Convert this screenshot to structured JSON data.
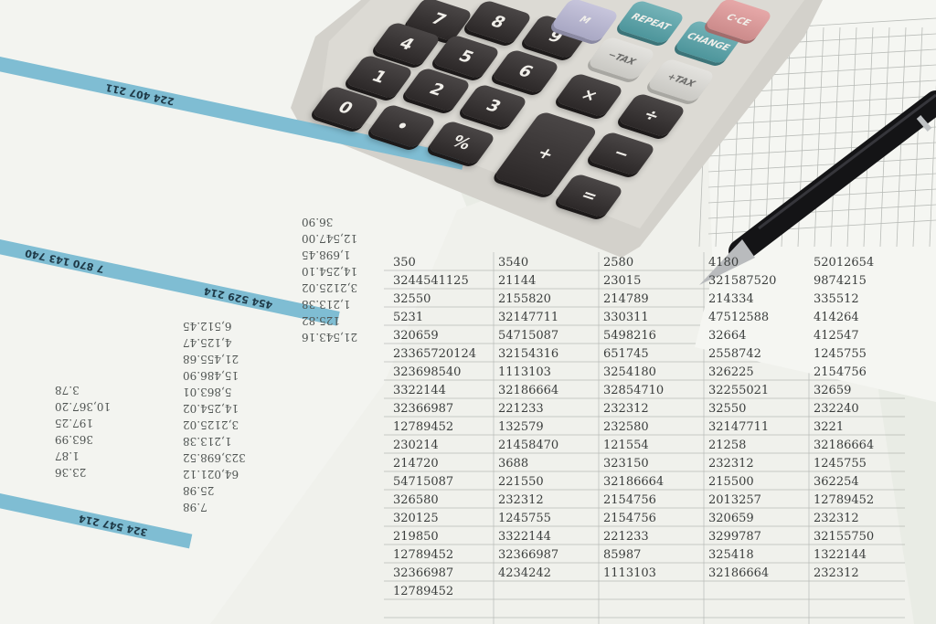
{
  "scene": {
    "description_colors": {
      "background": "#e9ece5",
      "band": "#7fbdd3",
      "calculator_body": "#d3d1cb",
      "key_dark": "#2c2828",
      "pen": "#141416"
    },
    "left_document": {
      "band_labels": [
        "224 407 211",
        "7 870 143 740",
        "454 529 214",
        "324 547 214"
      ],
      "values": [
        "36.90",
        "12,547.00",
        "1,698.45",
        "14,254.10",
        "3,2125.02",
        "1,213.38",
        "125.82",
        "21,543.16",
        "6,512.45",
        "4,125.47",
        "21,455.68",
        "15,486.90",
        "5,863.01",
        "14,254.02",
        "3,2125.02",
        "1,213.38",
        "323,698.52",
        "64,021.12",
        "25.98",
        "7.98",
        "3.78",
        "10,367.20",
        "197.25",
        "363.99",
        "1.87",
        "23.36"
      ]
    },
    "spreadsheet": {
      "values": [
        "350",
        "3540",
        "2580",
        "4180",
        "52012654",
        "3244541125",
        "21144",
        "23015",
        "321587520",
        "9874215",
        "32550",
        "2155820",
        "214789",
        "214334",
        "335512",
        "5231",
        "32147711",
        "330311",
        "47512588",
        "414264",
        "320659",
        "54715087",
        "5498216",
        "32664",
        "412547",
        "23365720124",
        "32154316",
        "651745",
        "2558742",
        "1245755",
        "323698540",
        "1113103",
        "3254180",
        "326225",
        "2154756",
        "3322144",
        "32186664",
        "32854710",
        "32255021",
        "32659",
        "32366987",
        "221233",
        "232312",
        "32550",
        "232240",
        "12789452",
        "132579",
        "232580",
        "32147711",
        "3221",
        "230214",
        "21458470",
        "121554",
        "21258",
        "32186664",
        "214720",
        "3688",
        "323150",
        "232312",
        "1245755",
        "54715087",
        "221550",
        "32186664",
        "215500",
        "362254",
        "326580",
        "232312",
        "2154756",
        "2013257",
        "12789452",
        "320125",
        "1245755",
        "2154756",
        "320659",
        "232312",
        "219850",
        "3322144",
        "221233",
        "3299787",
        "32155750",
        "12789452",
        "32366987",
        "85987",
        "325418",
        "1322144",
        "32366987",
        "4234242",
        "1113103",
        "32186664",
        "232312",
        "12789452"
      ]
    },
    "calculator": {
      "keys": [
        "7",
        "8",
        "9",
        "4",
        "5",
        "6",
        "1",
        "2",
        "3",
        "0",
        "•",
        "%",
        "×",
        "÷",
        "+",
        "−",
        "=",
        "−TAX",
        "+TAX",
        "REPEAT",
        "CHANGE",
        "C·CE",
        "M"
      ]
    },
    "pen": {
      "color": "#141416"
    }
  }
}
